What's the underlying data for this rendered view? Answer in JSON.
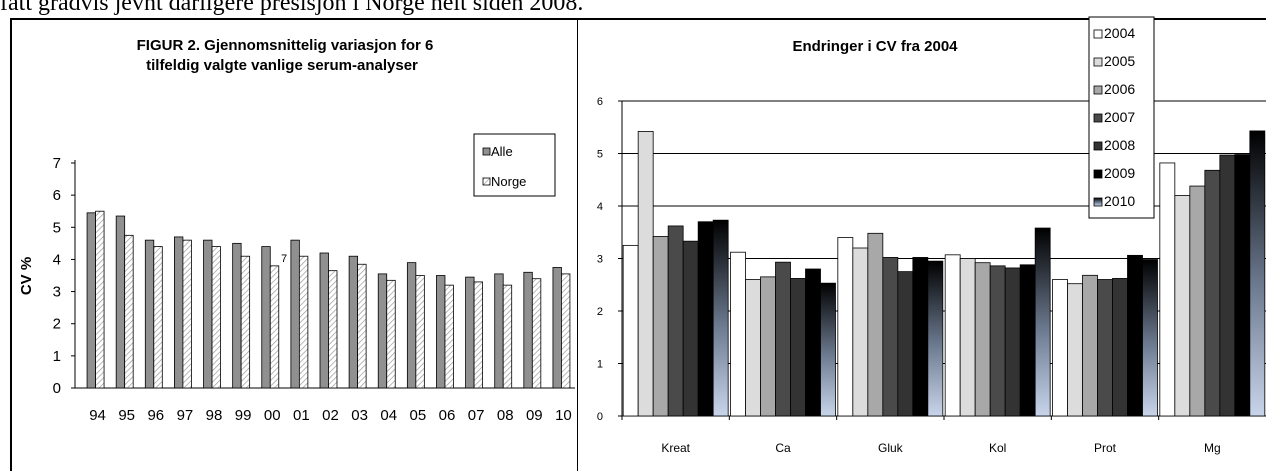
{
  "page": {
    "cutline_text": "fått gradvis jevnt dårligere presisjon i Norge helt siden 2008."
  },
  "colors": {
    "alle": "#909090",
    "norge_hatch": "#b8b8b8",
    "y2004": "#ffffff",
    "y2005": "#dcdcdc",
    "y2006": "#a8a8a8",
    "y2007": "#4a4a4a",
    "y2008": "#333333",
    "y2009": "#000000",
    "y2010_gradient_top": "#000000",
    "y2010_gradient_bottom": "#c8d4ea"
  },
  "chart_data": [
    {
      "type": "bar",
      "title_lines": [
        "FIGUR 2.  Gjennomsnittelig  variasjon for 6",
        "tilfeldig valgte vanlige serum-analyser"
      ],
      "xlabel": "",
      "ylabel": "CV %",
      "ylim": [
        0,
        7
      ],
      "yticks": [
        "0",
        "1",
        "2",
        "3",
        "4",
        "5",
        "6",
        "7"
      ],
      "grid": false,
      "legend_position": "right",
      "categories": [
        "94",
        "95",
        "96",
        "97",
        "98",
        "99",
        "00",
        "01",
        "02",
        "03",
        "04",
        "05",
        "06",
        "07",
        "08",
        "09",
        "10"
      ],
      "series": [
        {
          "name": "Alle",
          "values": [
            5.45,
            5.35,
            4.6,
            4.7,
            4.6,
            4.5,
            4.4,
            4.6,
            4.2,
            4.1,
            3.55,
            3.9,
            3.5,
            3.45,
            3.55,
            3.6,
            3.75
          ]
        },
        {
          "name": "Norge",
          "values": [
            5.5,
            4.75,
            4.4,
            4.6,
            4.4,
            4.1,
            3.8,
            4.1,
            3.65,
            3.85,
            3.35,
            3.5,
            3.2,
            3.3,
            3.2,
            3.4,
            3.55
          ]
        }
      ],
      "annotation": "7"
    },
    {
      "type": "bar",
      "title": "Endringer i CV fra 2004",
      "xlabel": "",
      "ylabel": "",
      "ylim": [
        0,
        6
      ],
      "yticks": [
        "0",
        "1",
        "2",
        "3",
        "4",
        "5",
        "6"
      ],
      "grid": true,
      "legend_position": "top-right",
      "categories": [
        "Kreat",
        "Ca",
        "Gluk",
        "Kol",
        "Prot",
        "Mg"
      ],
      "series": [
        {
          "name": "2004",
          "values": [
            3.25,
            3.12,
            3.4,
            3.07,
            2.6,
            4.82
          ]
        },
        {
          "name": "2005",
          "values": [
            5.42,
            2.6,
            3.2,
            3.0,
            2.52,
            4.2
          ]
        },
        {
          "name": "2006",
          "values": [
            3.42,
            2.65,
            3.48,
            2.92,
            2.68,
            4.38
          ]
        },
        {
          "name": "2007",
          "values": [
            3.62,
            2.93,
            3.02,
            2.86,
            2.6,
            4.68
          ]
        },
        {
          "name": "2008",
          "values": [
            3.33,
            2.62,
            2.75,
            2.82,
            2.62,
            4.97
          ]
        },
        {
          "name": "2009",
          "values": [
            3.7,
            2.8,
            3.02,
            2.88,
            3.06,
            4.98
          ]
        },
        {
          "name": "2010",
          "values": [
            3.73,
            2.53,
            2.95,
            3.58,
            2.98,
            5.43
          ]
        }
      ]
    }
  ]
}
